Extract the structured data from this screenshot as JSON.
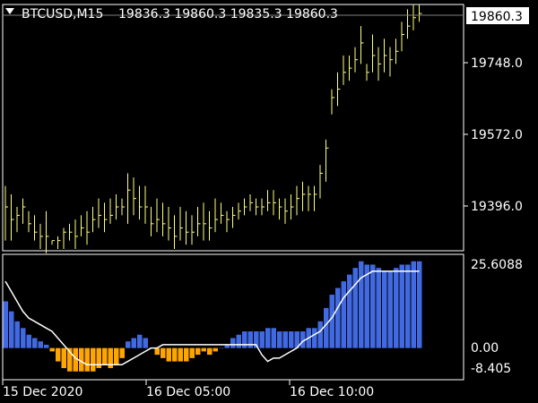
{
  "chart_header": {
    "symbol_tf": "BTCUSD,M15",
    "ohlc": "19836.3 19860.3 19835.3 19860.3"
  },
  "colors": {
    "background": "#000000",
    "frame": "#ffffff",
    "bar_up": "#ffff80",
    "bar_down": "#ffff80",
    "hist_pos": "#4169e1",
    "hist_neg": "#ffa500",
    "signal_line": "#ffffff"
  },
  "price_axis": {
    "current_price_label": "19860.3",
    "ticks": [
      "19748.0",
      "19572.0",
      "19396.0"
    ]
  },
  "indicator_axis": {
    "ticks": [
      "25.6088",
      "0.00",
      "-8.405"
    ]
  },
  "time_axis": {
    "labels": [
      "15 Dec 2020",
      "16 Dec 05:00",
      "16 Dec 10:00"
    ]
  },
  "chart_data": [
    {
      "type": "ohlc",
      "price_range": [
        19300,
        19875
      ],
      "bars_high": [
        19450,
        19430,
        19400,
        19420,
        19390,
        19380,
        19360,
        19390,
        19320,
        19330,
        19350,
        19360,
        19370,
        19380,
        19390,
        19400,
        19420,
        19410,
        19420,
        19430,
        19420,
        19480,
        19470,
        19450,
        19450,
        19400,
        19420,
        19410,
        19400,
        19380,
        19400,
        19390,
        19380,
        19400,
        19410,
        19390,
        19420,
        19410,
        19390,
        19400,
        19410,
        19420,
        19430,
        19420,
        19420,
        19440,
        19440,
        19420,
        19420,
        19430,
        19450,
        19460,
        19450,
        19450,
        19500,
        19560,
        19680,
        19720,
        19760,
        19760,
        19780,
        19830,
        19740,
        19810,
        19780,
        19800,
        19780,
        19800,
        19840,
        19870,
        19880,
        19880
      ],
      "bars_low": [
        19320,
        19320,
        19340,
        19360,
        19340,
        19320,
        19300,
        19290,
        19310,
        19300,
        19300,
        19320,
        19300,
        19330,
        19310,
        19340,
        19350,
        19340,
        19360,
        19370,
        19380,
        19360,
        19380,
        19370,
        19360,
        19330,
        19340,
        19330,
        19320,
        19300,
        19320,
        19310,
        19310,
        19330,
        19320,
        19320,
        19340,
        19360,
        19340,
        19350,
        19370,
        19380,
        19390,
        19380,
        19380,
        19390,
        19380,
        19370,
        19360,
        19370,
        19380,
        19390,
        19390,
        19390,
        19420,
        19460,
        19620,
        19640,
        19690,
        19700,
        19720,
        19740,
        19700,
        19720,
        19700,
        19720,
        19710,
        19740,
        19770,
        19800,
        19820,
        19840
      ],
      "bars_close": [
        19400,
        19370,
        19380,
        19400,
        19360,
        19340,
        19330,
        19330,
        19320,
        19320,
        19340,
        19340,
        19330,
        19350,
        19340,
        19370,
        19380,
        19370,
        19380,
        19400,
        19400,
        19440,
        19420,
        19400,
        19400,
        19360,
        19370,
        19360,
        19350,
        19330,
        19350,
        19340,
        19340,
        19360,
        19360,
        19350,
        19370,
        19380,
        19370,
        19380,
        19390,
        19400,
        19410,
        19400,
        19400,
        19410,
        19410,
        19400,
        19390,
        19400,
        19420,
        19430,
        19430,
        19430,
        19480,
        19540,
        19660,
        19680,
        19720,
        19730,
        19750,
        19790,
        19720,
        19760,
        19740,
        19760,
        19750,
        19770,
        19810,
        19830,
        19850,
        19860
      ]
    },
    {
      "type": "histogram+line",
      "value_range": [
        -8.405,
        27
      ],
      "histogram": [
        14,
        11,
        8,
        6,
        4,
        3,
        2,
        1,
        -1,
        -4,
        -6,
        -7,
        -7,
        -7,
        -7,
        -7,
        -6,
        -5,
        -6,
        -5,
        -3,
        2,
        3,
        4,
        3,
        0,
        -2,
        -3,
        -4,
        -4,
        -4,
        -4,
        -3,
        -2,
        -1,
        -2,
        -1,
        0,
        1,
        3,
        4,
        5,
        5,
        5,
        5,
        6,
        6,
        5,
        5,
        5,
        5,
        5,
        6,
        6,
        8,
        12,
        16,
        18,
        20,
        22,
        24,
        26,
        25,
        25,
        24,
        23,
        23,
        24,
        25,
        25,
        26,
        26
      ],
      "signal": [
        20,
        17,
        14,
        11,
        9,
        8,
        7,
        6,
        5,
        3,
        1,
        -1,
        -3,
        -4,
        -5,
        -5,
        -5,
        -5,
        -5,
        -5,
        -5,
        -4,
        -3,
        -2,
        -1,
        0,
        0,
        1,
        1,
        1,
        1,
        1,
        1,
        1,
        1,
        1,
        1,
        1,
        1,
        1,
        1,
        1,
        1,
        1,
        -2,
        -4,
        -3,
        -3,
        -2,
        -1,
        0,
        2,
        3,
        4,
        5,
        7,
        9,
        12,
        15,
        17,
        19,
        21,
        22,
        23,
        23,
        23,
        23,
        23,
        23,
        23,
        23,
        23
      ]
    }
  ]
}
